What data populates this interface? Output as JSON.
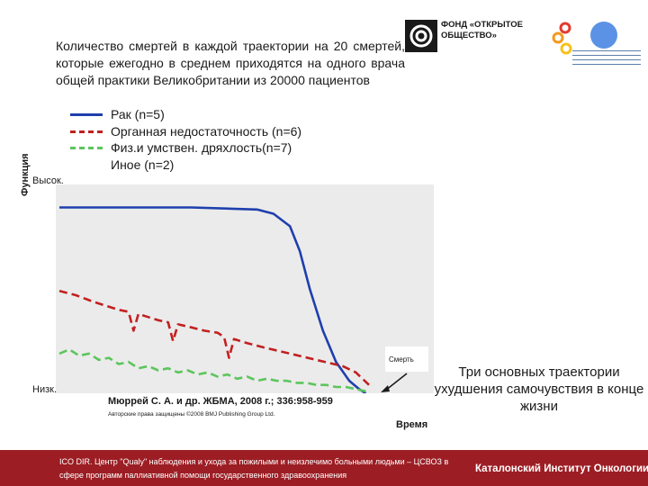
{
  "header": {
    "foundation": "ФОНД «ОТКРЫТОЕ ОБЩЕСТВО»"
  },
  "intro_text": "Количество смертей в каждой траектории на 20 смертей, которые ежегодно в среднем приходятся на одного врача общей практики Великобритании из 20000 пациентов",
  "colors": {
    "cancer": "#1f3fae",
    "organ_failure": "#c22020",
    "frailty": "#5cc55c",
    "footer": "#9c1e24"
  },
  "chart_data": {
    "type": "line",
    "title": "",
    "ylabel": "Функция",
    "xlabel": "Время",
    "y_high_label": "Высок.",
    "y_low_label": "Низк.",
    "death_label": "Смерть",
    "xlim": [
      0,
      100
    ],
    "ylim": [
      0,
      100
    ],
    "grid": false,
    "legend_position": "top-left",
    "series": [
      {
        "name": "Рак (n=5)",
        "style": "solid",
        "color": "#1f3fae",
        "x": [
          0,
          20,
          40,
          60,
          65,
          70,
          73,
          76,
          80,
          84,
          88,
          91,
          93
        ],
        "y": [
          89,
          89,
          89,
          88,
          86,
          80,
          68,
          50,
          30,
          15,
          6,
          2,
          0
        ]
      },
      {
        "name": "Органная недостаточность (n=6)",
        "style": "dashed",
        "color": "#c22020",
        "x": [
          0,
          5,
          10,
          14,
          18,
          21,
          22.5,
          24,
          26,
          30,
          33,
          34.5,
          36,
          39,
          44,
          48,
          50,
          51.5,
          53,
          57,
          62,
          70,
          78,
          86,
          90,
          94
        ],
        "y": [
          49,
          47,
          44,
          42,
          40,
          39,
          30,
          38,
          37,
          35,
          34,
          25,
          33,
          32,
          30,
          29,
          27,
          17,
          26,
          24,
          22,
          19,
          16,
          13,
          10,
          4
        ]
      },
      {
        "name": "Физ.и умствен. дряхлость(n=7)",
        "style": "dashed",
        "color": "#5cc55c",
        "x": [
          0,
          3,
          6,
          9,
          12,
          15,
          18,
          21,
          24,
          27,
          30,
          33,
          36,
          39,
          42,
          45,
          48,
          51,
          54,
          57,
          60,
          63,
          66,
          69,
          72,
          75,
          78,
          81,
          84,
          87,
          90,
          93
        ],
        "y": [
          19,
          21,
          18,
          19,
          16,
          17,
          14,
          15,
          12,
          13,
          11,
          12,
          10,
          11,
          9,
          10,
          8,
          9,
          7,
          8,
          6,
          7,
          6,
          6,
          5,
          5,
          4,
          4,
          3,
          3,
          2,
          1
        ]
      },
      {
        "name": "Иное (n=2)",
        "style": "none",
        "color": "",
        "x": [],
        "y": []
      }
    ]
  },
  "citation": "Мюррей С. А. и др. ЖБМА, 2008 г.; 336:958-959",
  "copyright": "Авторские права защищены ©2008 BMJ Publishing Group Ltd.",
  "side_caption": "Три основных траектории ухудшения самочувствия в конце жизни",
  "footer": {
    "left": "ICO DIR. Центр \"Qualy\" наблюдения и ухода за пожилыми и неизлечимо больными людьми – ЦСВОЗ в сфере программ паллиативной помощи государственного здравоохранения",
    "right": "Каталонский Институт Онкологии"
  }
}
